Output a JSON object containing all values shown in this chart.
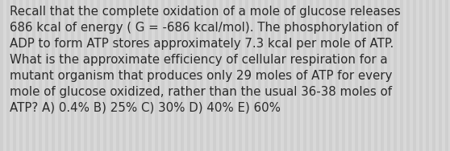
{
  "text": "Recall that the complete oxidation of a mole of glucose releases\n686 kcal of energy ( G = -686 kcal/mol). The phosphorylation of\nADP to form ATP stores approximately 7.3 kcal per mole of ATP.\nWhat is the approximate efficiency of cellular respiration for a\nmutant organism that produces only 29 moles of ATP for every\nmole of glucose oxidized, rather than the usual 36-38 moles of\nATP? A) 0.4% B) 25% C) 30% D) 40% E) 60%",
  "background_color": "#d8d8d8",
  "stripe_color": "#c8c8c8",
  "text_color": "#2a2a2a",
  "font_size": 10.8,
  "fig_width": 5.58,
  "fig_height": 1.88,
  "dpi": 100
}
